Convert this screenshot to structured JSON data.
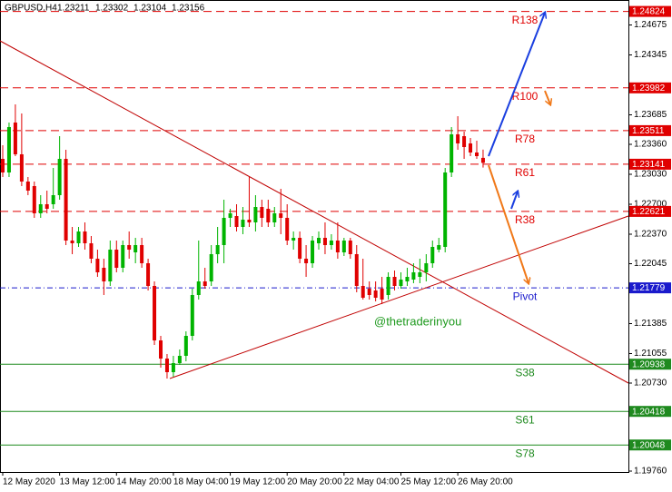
{
  "chart_data": {
    "type": "candlestick",
    "symbol": "GBPUSD,H4",
    "header_ohlc": [
      1.23211,
      1.23302,
      1.23104,
      1.23156
    ],
    "watermark": "@thetraderinyou",
    "up_color": "#00b400",
    "down_color": "#e00000",
    "categories": [
      "12 May 2020",
      null,
      null,
      null,
      null,
      null,
      null,
      null,
      null,
      "13 May 12:00",
      null,
      null,
      null,
      null,
      null,
      null,
      null,
      null,
      "14 May 20:00",
      null,
      null,
      null,
      null,
      null,
      null,
      null,
      null,
      "18 May 04:00",
      null,
      null,
      null,
      null,
      null,
      null,
      null,
      null,
      "19 May 12:00",
      null,
      null,
      null,
      null,
      null,
      null,
      null,
      null,
      "20 May 20:00",
      null,
      null,
      null,
      null,
      null,
      null,
      null,
      null,
      "22 May 04:00",
      null,
      null,
      null,
      null,
      null,
      null,
      null,
      null,
      "25 May 12:00",
      null,
      null,
      null,
      null,
      null,
      null,
      null,
      null,
      "26 May 20:00",
      null,
      null,
      null,
      null
    ],
    "open": [
      1.232,
      1.2305,
      1.236,
      1.2325,
      1.2295,
      1.229,
      1.226,
      1.227,
      1.227,
      1.228,
      1.232,
      1.223,
      1.2227,
      1.224,
      1.2227,
      1.221,
      1.22,
      1.2185,
      1.222,
      1.22,
      1.2225,
      1.2217,
      1.2225,
      1.2205,
      1.218,
      1.212,
      1.21,
      1.2085,
      1.2095,
      1.2103,
      1.2125,
      1.217,
      1.2185,
      1.2185,
      1.2215,
      1.2225,
      1.2255,
      1.2257,
      1.2245,
      1.2253,
      1.225,
      1.2267,
      1.2265,
      1.225,
      1.226,
      1.2255,
      1.223,
      1.2233,
      1.221,
      1.2205,
      1.2227,
      1.2233,
      1.2225,
      1.223,
      1.2217,
      1.223,
      1.2215,
      1.218,
      1.2177,
      1.2175,
      1.2177,
      1.217,
      1.219,
      1.218,
      1.2185,
      1.2187,
      1.219,
      1.2195,
      1.2205,
      1.222,
      1.2223,
      1.2305,
      1.2347,
      1.2345,
      1.2337,
      1.2327,
      1.23211
    ],
    "high": [
      1.2335,
      1.236,
      1.238,
      1.237,
      1.23,
      1.2295,
      1.228,
      1.2285,
      1.231,
      1.2345,
      1.233,
      1.2245,
      1.2245,
      1.225,
      1.2235,
      1.222,
      1.221,
      1.223,
      1.223,
      1.223,
      1.224,
      1.2233,
      1.2233,
      1.221,
      1.2185,
      1.2125,
      1.2105,
      1.2103,
      1.211,
      1.213,
      1.2177,
      1.223,
      1.22,
      1.2225,
      1.2245,
      1.2275,
      1.2265,
      1.227,
      1.2267,
      1.23,
      1.228,
      1.2275,
      1.2275,
      1.2267,
      1.2287,
      1.227,
      1.224,
      1.224,
      1.2225,
      1.2235,
      1.224,
      1.225,
      1.2237,
      1.225,
      1.2233,
      1.2233,
      1.2225,
      1.221,
      1.2185,
      1.2185,
      1.219,
      1.2195,
      1.2197,
      1.2195,
      1.22,
      1.2205,
      1.221,
      1.2215,
      1.223,
      1.2233,
      1.231,
      1.2355,
      1.2367,
      1.235,
      1.2343,
      1.234,
      1.23302
    ],
    "low": [
      1.23,
      1.23,
      1.2323,
      1.229,
      1.228,
      1.2255,
      1.2255,
      1.226,
      1.2265,
      1.2275,
      1.2225,
      1.2215,
      1.2223,
      1.222,
      1.2205,
      1.219,
      1.217,
      1.218,
      1.2195,
      1.2195,
      1.221,
      1.2205,
      1.22,
      1.2175,
      1.2115,
      1.209,
      1.2078,
      1.208,
      1.2093,
      1.2097,
      1.212,
      1.2165,
      1.2177,
      1.218,
      1.2205,
      1.2205,
      1.2245,
      1.224,
      1.2237,
      1.2245,
      1.224,
      1.2245,
      1.2245,
      1.2245,
      1.2237,
      1.2225,
      1.222,
      1.2205,
      1.219,
      1.22,
      1.222,
      1.2215,
      1.222,
      1.221,
      1.2213,
      1.221,
      1.2173,
      1.2165,
      1.2165,
      1.2163,
      1.216,
      1.2165,
      1.2175,
      1.2177,
      1.218,
      1.2183,
      1.2183,
      1.2185,
      1.22,
      1.2217,
      1.2217,
      1.23,
      1.233,
      1.232,
      1.2323,
      1.232,
      1.23104
    ],
    "close": [
      1.2305,
      1.2355,
      1.2325,
      1.2295,
      1.2285,
      1.226,
      1.227,
      1.2265,
      1.228,
      1.232,
      1.223,
      1.2227,
      1.224,
      1.2227,
      1.221,
      1.2195,
      1.2185,
      1.222,
      1.22,
      1.2225,
      1.222,
      1.2225,
      1.2205,
      1.218,
      1.212,
      1.21,
      1.2085,
      1.2095,
      1.2103,
      1.2125,
      1.217,
      1.2185,
      1.218,
      1.2215,
      1.2225,
      1.2255,
      1.226,
      1.2245,
      1.2253,
      1.225,
      1.2267,
      1.2255,
      1.225,
      1.226,
      1.2255,
      1.223,
      1.2233,
      1.221,
      1.2205,
      1.223,
      1.2233,
      1.2225,
      1.223,
      1.2217,
      1.223,
      1.2215,
      1.218,
      1.2167,
      1.217,
      1.2167,
      1.2165,
      1.219,
      1.218,
      1.2187,
      1.219,
      1.2195,
      1.2195,
      1.2205,
      1.2223,
      1.2225,
      1.2305,
      1.2347,
      1.2337,
      1.2333,
      1.2327,
      1.2323,
      1.23156
    ],
    "ylim": [
      1.1975,
      1.2495
    ],
    "yticks": [
      1.24675,
      1.24345,
      1.23685,
      {
        "value": 1.2336,
        "label": "1.23360"
      },
      {
        "value": 1.2303,
        "label": "1.23030"
      },
      {
        "value": 1.227,
        "label": "1.22700"
      },
      {
        "value": 1.2237,
        "label": "1.22370"
      },
      1.22045,
      1.21385,
      1.21055,
      {
        "value": 1.2073,
        "label": "1.20730"
      },
      {
        "value": 1.1976,
        "label": "1.19760"
      }
    ],
    "levels": [
      {
        "name": "R138",
        "value": 1.24824,
        "color": "#e00000",
        "style": "dash"
      },
      {
        "name": "R100",
        "value": 1.23982,
        "color": "#e00000",
        "style": "dash"
      },
      {
        "name": "R78",
        "value": 1.23511,
        "color": "#e00000",
        "style": "dash"
      },
      {
        "name": "R61",
        "value": 1.23141,
        "color": "#e00000",
        "style": "dash"
      },
      {
        "name": "R38",
        "value": 1.22621,
        "color": "#e00000",
        "style": "dash"
      },
      {
        "name": "Pivot",
        "value": 1.21779,
        "color": "#1a1acc",
        "style": "dashdot"
      },
      {
        "name": "S38",
        "value": 1.20938,
        "color": "#1f8a1f",
        "style": "solid"
      },
      {
        "name": "S61",
        "value": 1.20418,
        "color": "#1f8a1f",
        "style": "solid"
      },
      {
        "name": "S78",
        "value": 1.20048,
        "color": "#1f8a1f",
        "style": "solid"
      }
    ]
  }
}
